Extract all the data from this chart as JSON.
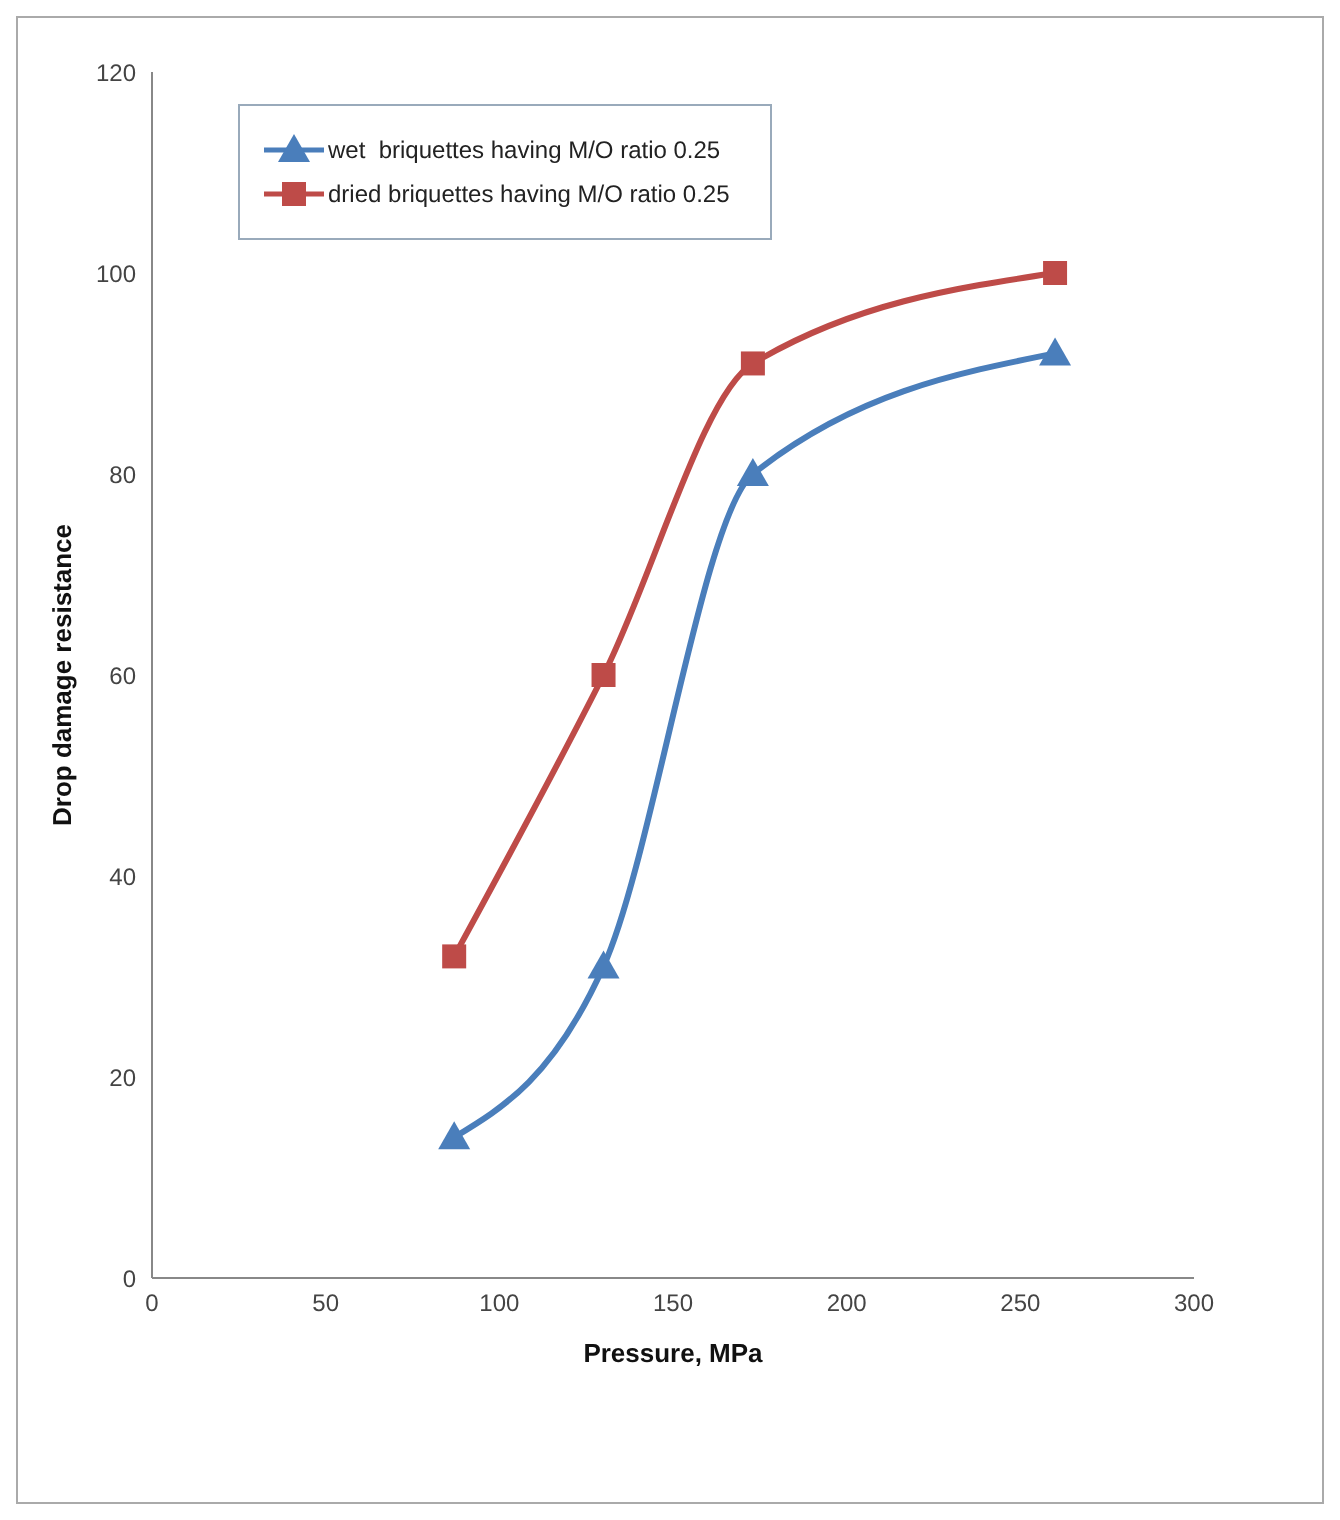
{
  "chart_data": {
    "type": "line",
    "xlabel": "Pressure, MPa",
    "ylabel": "Drop  damage resistance",
    "xlim": [
      0,
      300
    ],
    "xticks": [
      0,
      50,
      100,
      150,
      200,
      250,
      300
    ],
    "ylim": [
      0,
      120
    ],
    "yticks": [
      0,
      20,
      40,
      60,
      80,
      100,
      120
    ],
    "grid": false,
    "legend": "top left",
    "line_style": "solid",
    "series": [
      {
        "name": "wet  briquettes having M/O ratio 0.25",
        "color": "#4a7ebb",
        "marker": "triangle",
        "x": [
          87,
          130,
          173,
          260
        ],
        "values": [
          14,
          31,
          80,
          92
        ]
      },
      {
        "name": "dried briquettes having M/O ratio 0.25",
        "color": "#be4b48",
        "marker": "square",
        "x": [
          87,
          130,
          173,
          260
        ],
        "values": [
          32,
          60,
          91,
          100
        ]
      }
    ]
  }
}
